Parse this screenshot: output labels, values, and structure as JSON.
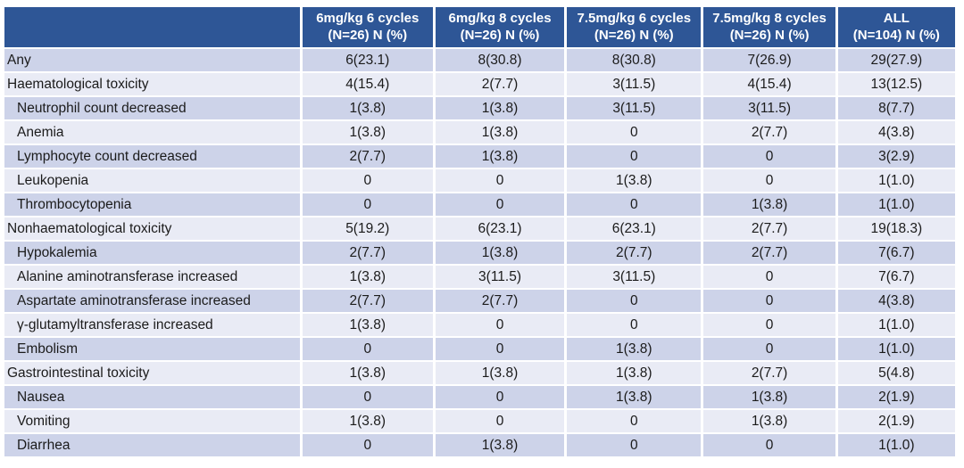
{
  "colors": {
    "header_bg": "#2E5696",
    "header_text": "#FFFFFF",
    "row_stripe_dark": "#CDD3E9",
    "row_stripe_light": "#E9EBF5",
    "body_text": "#1B1B1B"
  },
  "table": {
    "columns": [
      {
        "line1": "",
        "line2": ""
      },
      {
        "line1": "6mg/kg 6 cycles",
        "line2": "(N=26) N (%)"
      },
      {
        "line1": "6mg/kg 8 cycles",
        "line2": "(N=26) N (%)"
      },
      {
        "line1": "7.5mg/kg 6 cycles",
        "line2": "(N=26) N (%)"
      },
      {
        "line1": "7.5mg/kg 8 cycles",
        "line2": "(N=26) N (%)"
      },
      {
        "line1": "ALL",
        "line2": "(N=104) N (%)"
      }
    ],
    "rows": [
      {
        "label": "Any",
        "indent": false,
        "values": [
          "6(23.1)",
          "8(30.8)",
          "8(30.8)",
          "7(26.9)",
          "29(27.9)"
        ]
      },
      {
        "label": "Haematological toxicity",
        "indent": false,
        "values": [
          "4(15.4)",
          "2(7.7)",
          "3(11.5)",
          "4(15.4)",
          "13(12.5)"
        ]
      },
      {
        "label": "Neutrophil count decreased",
        "indent": true,
        "values": [
          "1(3.8)",
          "1(3.8)",
          "3(11.5)",
          "3(11.5)",
          "8(7.7)"
        ]
      },
      {
        "label": "Anemia",
        "indent": true,
        "values": [
          "1(3.8)",
          "1(3.8)",
          "0",
          "2(7.7)",
          "4(3.8)"
        ]
      },
      {
        "label": "Lymphocyte count decreased",
        "indent": true,
        "values": [
          "2(7.7)",
          "1(3.8)",
          "0",
          "0",
          "3(2.9)"
        ]
      },
      {
        "label": "Leukopenia",
        "indent": true,
        "values": [
          "0",
          "0",
          "1(3.8)",
          "0",
          "1(1.0)"
        ]
      },
      {
        "label": "Thrombocytopenia",
        "indent": true,
        "values": [
          "0",
          "0",
          "0",
          "1(3.8)",
          "1(1.0)"
        ]
      },
      {
        "label": "Nonhaematological toxicity",
        "indent": false,
        "values": [
          "5(19.2)",
          "6(23.1)",
          "6(23.1)",
          "2(7.7)",
          "19(18.3)"
        ]
      },
      {
        "label": "Hypokalemia",
        "indent": true,
        "values": [
          "2(7.7)",
          "1(3.8)",
          "2(7.7)",
          "2(7.7)",
          "7(6.7)"
        ]
      },
      {
        "label": "Alanine aminotransferase increased",
        "indent": true,
        "values": [
          "1(3.8)",
          "3(11.5)",
          "3(11.5)",
          "0",
          "7(6.7)"
        ]
      },
      {
        "label": "Aspartate aminotransferase increased",
        "indent": true,
        "values": [
          "2(7.7)",
          "2(7.7)",
          "0",
          "0",
          "4(3.8)"
        ]
      },
      {
        "label": "γ-glutamyltransferase increased",
        "indent": true,
        "values": [
          "1(3.8)",
          "0",
          "0",
          "0",
          "1(1.0)"
        ]
      },
      {
        "label": "Embolism",
        "indent": true,
        "values": [
          "0",
          "0",
          "1(3.8)",
          "0",
          "1(1.0)"
        ]
      },
      {
        "label": "Gastrointestinal toxicity",
        "indent": false,
        "values": [
          "1(3.8)",
          "1(3.8)",
          "1(3.8)",
          "2(7.7)",
          "5(4.8)"
        ]
      },
      {
        "label": "Nausea",
        "indent": true,
        "values": [
          "0",
          "0",
          "1(3.8)",
          "1(3.8)",
          "2(1.9)"
        ]
      },
      {
        "label": "Vomiting",
        "indent": true,
        "values": [
          "1(3.8)",
          "0",
          "0",
          "1(3.8)",
          "2(1.9)"
        ]
      },
      {
        "label": "Diarrhea",
        "indent": true,
        "values": [
          "0",
          "1(3.8)",
          "0",
          "0",
          "1(1.0)"
        ]
      }
    ]
  }
}
